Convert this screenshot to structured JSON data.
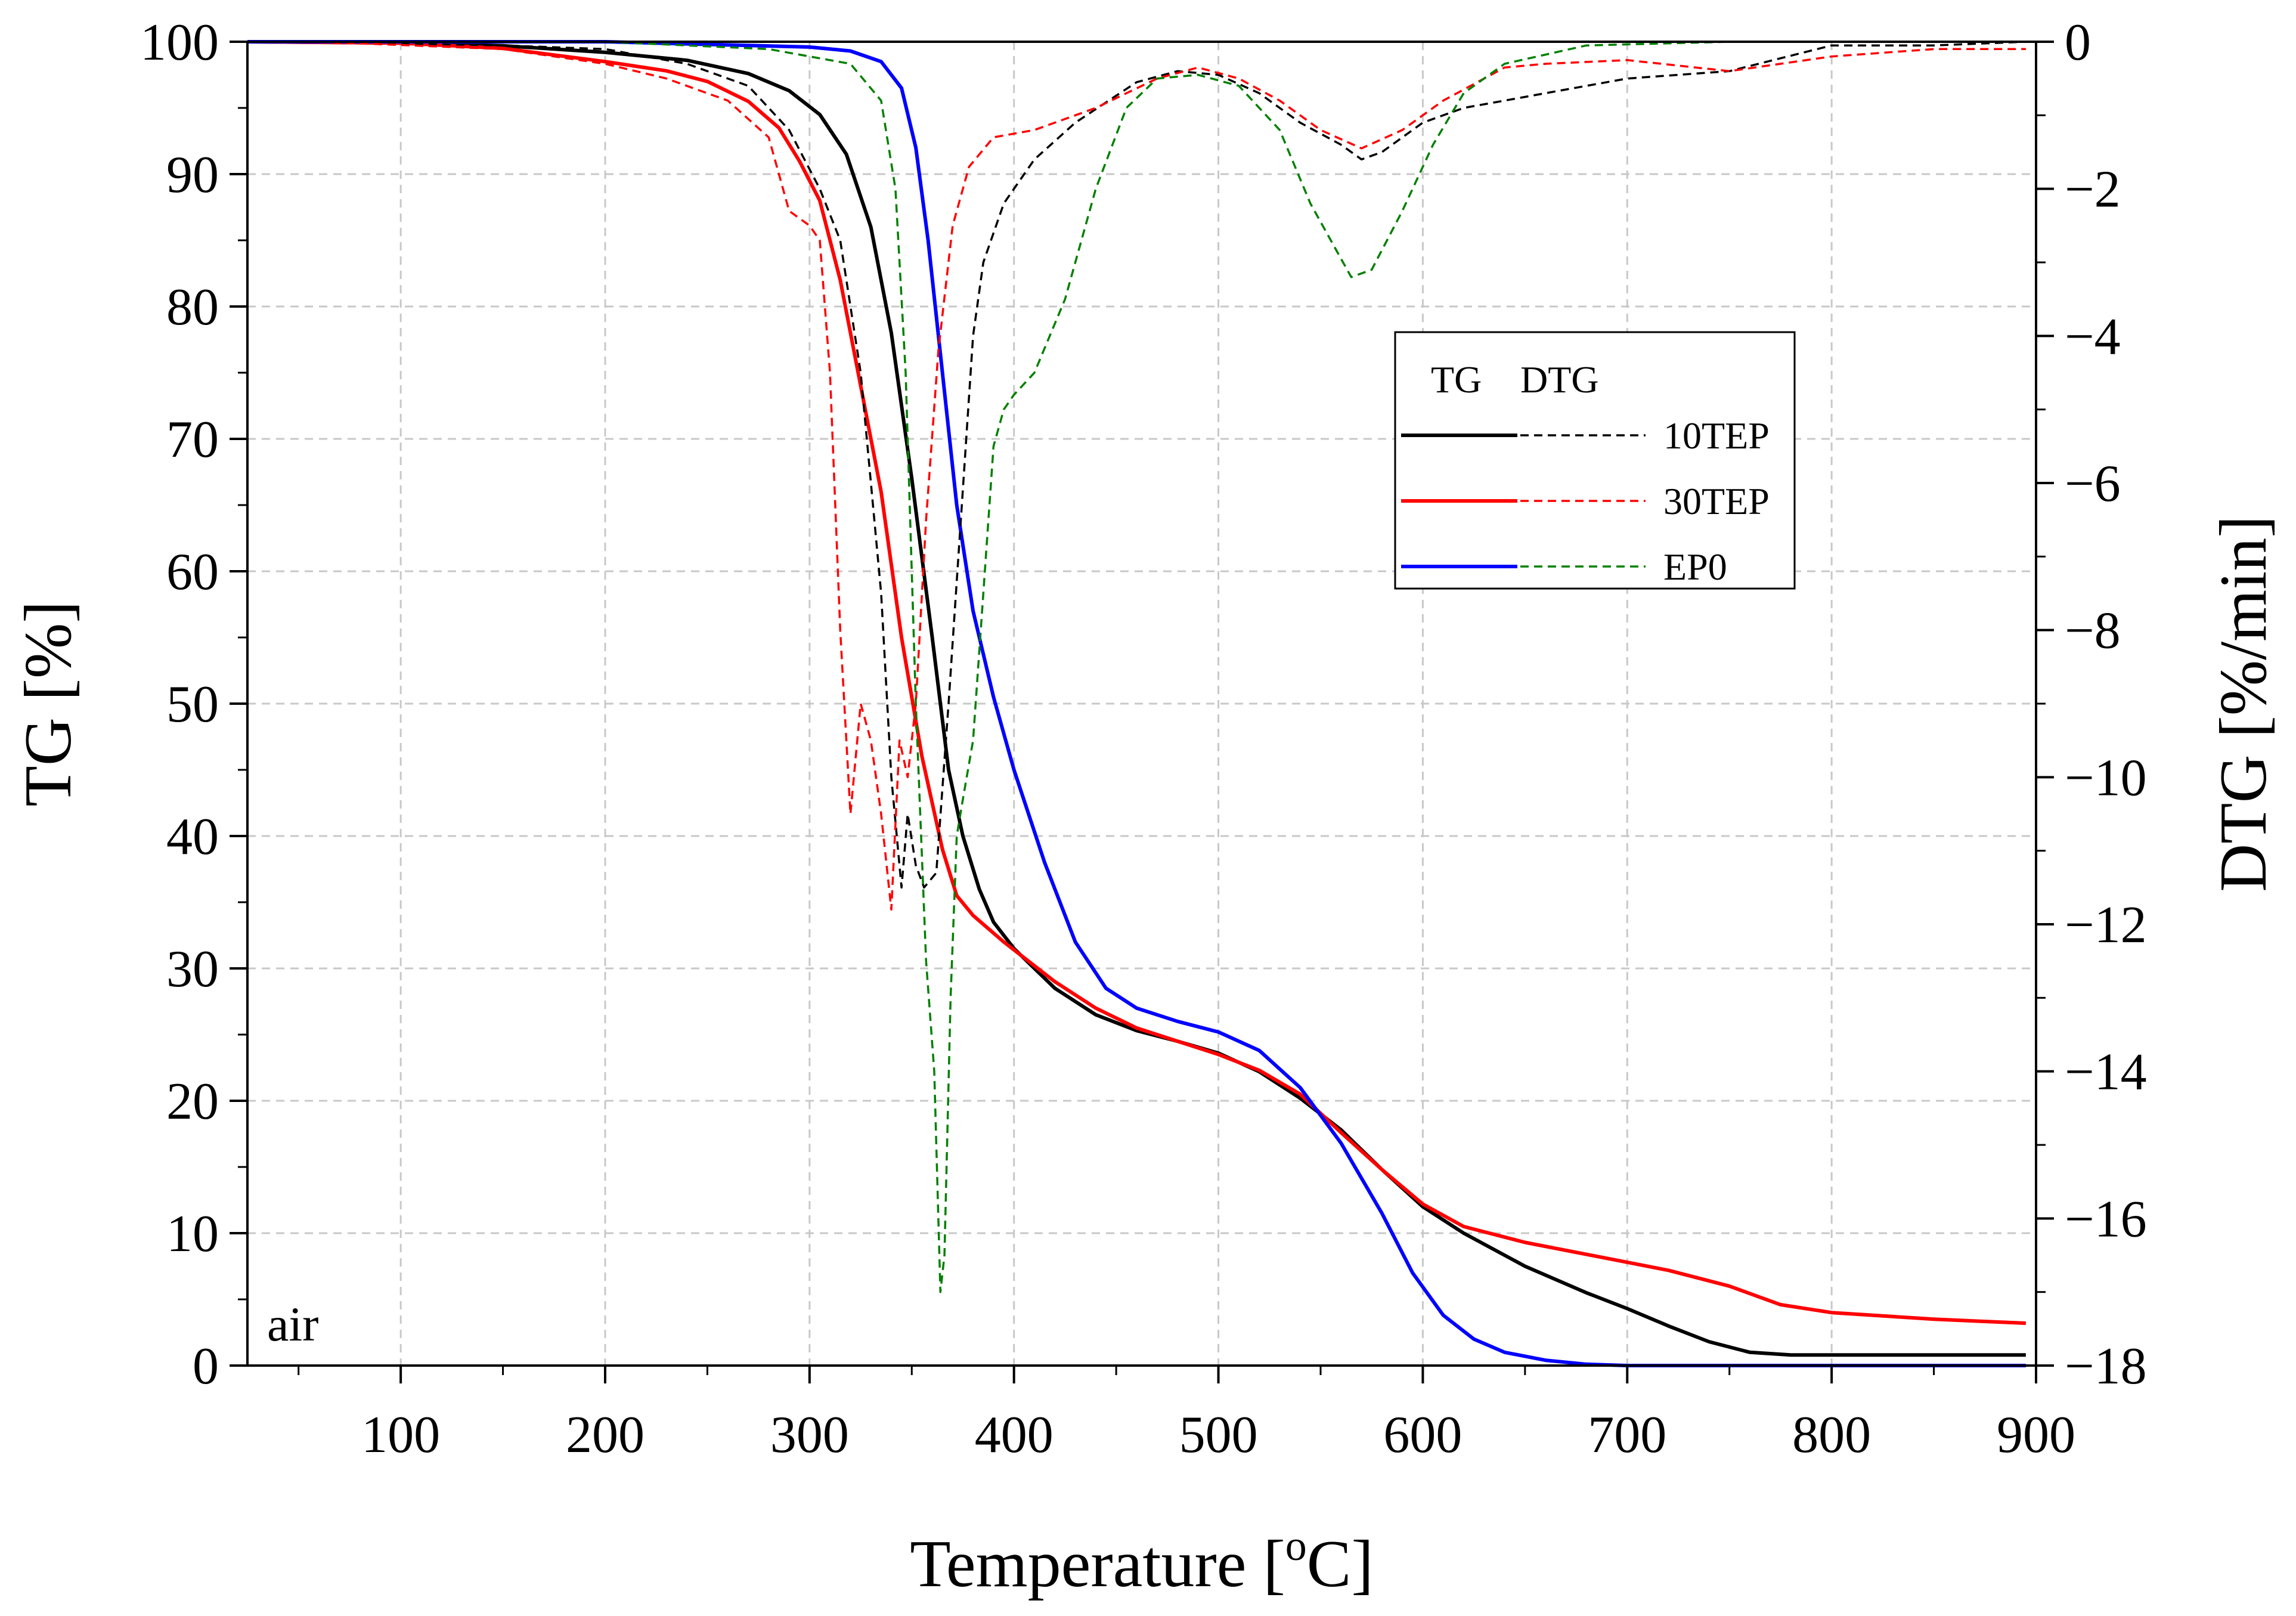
{
  "chart_data": {
    "type": "line",
    "title": "",
    "xlabel": "Temperature [",
    "xlabel_sup": "o",
    "xlabel_end": "C]",
    "ylabel": "TG [%]",
    "y2label": "DTG [%/min]",
    "xlim": [
      25,
      900
    ],
    "ylim": [
      0,
      100
    ],
    "y2lim": [
      -18,
      0
    ],
    "xticks": [
      100,
      200,
      300,
      400,
      500,
      600,
      700,
      800,
      900
    ],
    "xtick_labels": [
      "100",
      "200",
      "300",
      "400",
      "500",
      "600",
      "700",
      "800",
      "900"
    ],
    "yticks": [
      0,
      10,
      20,
      30,
      40,
      50,
      60,
      70,
      80,
      90,
      100
    ],
    "ytick_labels": [
      "0",
      "10",
      "20",
      "30",
      "40",
      "50",
      "60",
      "70",
      "80",
      "90",
      "100"
    ],
    "y2ticks": [
      0,
      -2,
      -4,
      -6,
      -8,
      -10,
      -12,
      -14,
      -16,
      -18
    ],
    "y2tick_labels": [
      "0",
      "−2",
      "−4",
      "−6",
      "−8",
      "−10",
      "−12",
      "−14",
      "−16",
      "−18"
    ],
    "grid": true,
    "legend": {
      "position": "upper-right",
      "header_tg": "TG",
      "header_dtg": "DTG",
      "entries": [
        "10TEP",
        "30TEP",
        "EP0"
      ]
    },
    "annotation": "air",
    "series": [
      {
        "name": "10TEP",
        "kind": "TG",
        "axis": "left",
        "color": "#000000",
        "style": "solid",
        "points": [
          [
            25,
            100
          ],
          [
            100,
            99.9
          ],
          [
            150,
            99.7
          ],
          [
            200,
            99.2
          ],
          [
            240,
            98.6
          ],
          [
            270,
            97.6
          ],
          [
            290,
            96.3
          ],
          [
            305,
            94.5
          ],
          [
            318,
            91.5
          ],
          [
            330,
            86
          ],
          [
            340,
            78
          ],
          [
            350,
            67
          ],
          [
            360,
            55
          ],
          [
            368,
            45
          ],
          [
            375,
            40
          ],
          [
            383,
            36
          ],
          [
            390,
            33.5
          ],
          [
            400,
            31.5
          ],
          [
            420,
            28.5
          ],
          [
            440,
            26.5
          ],
          [
            460,
            25.3
          ],
          [
            480,
            24.5
          ],
          [
            500,
            23.6
          ],
          [
            520,
            22.2
          ],
          [
            540,
            20.2
          ],
          [
            560,
            17.8
          ],
          [
            580,
            14.8
          ],
          [
            600,
            12
          ],
          [
            620,
            10
          ],
          [
            650,
            7.5
          ],
          [
            680,
            5.5
          ],
          [
            700,
            4.3
          ],
          [
            720,
            3
          ],
          [
            740,
            1.8
          ],
          [
            760,
            1
          ],
          [
            780,
            0.8
          ],
          [
            800,
            0.8
          ],
          [
            850,
            0.8
          ],
          [
            895,
            0.8
          ]
        ]
      },
      {
        "name": "30TEP",
        "kind": "TG",
        "axis": "left",
        "color": "#ff0000",
        "style": "solid",
        "points": [
          [
            25,
            100
          ],
          [
            100,
            99.9
          ],
          [
            150,
            99.5
          ],
          [
            200,
            98.5
          ],
          [
            230,
            97.8
          ],
          [
            250,
            97
          ],
          [
            270,
            95.5
          ],
          [
            285,
            93.5
          ],
          [
            295,
            91
          ],
          [
            305,
            88
          ],
          [
            315,
            82
          ],
          [
            325,
            74
          ],
          [
            335,
            66
          ],
          [
            345,
            55
          ],
          [
            355,
            46
          ],
          [
            365,
            39
          ],
          [
            372,
            35.5
          ],
          [
            380,
            34
          ],
          [
            395,
            32
          ],
          [
            420,
            29
          ],
          [
            440,
            27
          ],
          [
            460,
            25.5
          ],
          [
            480,
            24.5
          ],
          [
            500,
            23.5
          ],
          [
            520,
            22.3
          ],
          [
            540,
            20.5
          ],
          [
            560,
            17.6
          ],
          [
            580,
            14.8
          ],
          [
            600,
            12.2
          ],
          [
            620,
            10.5
          ],
          [
            650,
            9.3
          ],
          [
            700,
            7.8
          ],
          [
            720,
            7.2
          ],
          [
            750,
            6
          ],
          [
            775,
            4.6
          ],
          [
            800,
            4
          ],
          [
            850,
            3.5
          ],
          [
            895,
            3.2
          ]
        ]
      },
      {
        "name": "EP0",
        "kind": "TG",
        "axis": "left",
        "color": "#0000ff",
        "style": "solid",
        "points": [
          [
            25,
            100
          ],
          [
            200,
            100
          ],
          [
            300,
            99.6
          ],
          [
            320,
            99.3
          ],
          [
            335,
            98.5
          ],
          [
            345,
            96.5
          ],
          [
            352,
            92
          ],
          [
            358,
            85
          ],
          [
            365,
            75
          ],
          [
            372,
            65
          ],
          [
            380,
            57
          ],
          [
            390,
            50.5
          ],
          [
            400,
            45
          ],
          [
            415,
            38
          ],
          [
            430,
            32
          ],
          [
            445,
            28.5
          ],
          [
            460,
            27
          ],
          [
            480,
            26
          ],
          [
            500,
            25.2
          ],
          [
            520,
            23.8
          ],
          [
            540,
            21
          ],
          [
            560,
            16.8
          ],
          [
            580,
            11.5
          ],
          [
            595,
            7
          ],
          [
            610,
            3.8
          ],
          [
            625,
            2
          ],
          [
            640,
            1
          ],
          [
            660,
            0.4
          ],
          [
            680,
            0.1
          ],
          [
            700,
            0
          ],
          [
            800,
            0
          ],
          [
            895,
            0
          ]
        ]
      },
      {
        "name": "10TEP",
        "kind": "DTG",
        "axis": "right",
        "color": "#000000",
        "style": "dashed",
        "points": [
          [
            60,
            0
          ],
          [
            150,
            -0.05
          ],
          [
            200,
            -0.1
          ],
          [
            240,
            -0.3
          ],
          [
            270,
            -0.6
          ],
          [
            290,
            -1.2
          ],
          [
            305,
            -2
          ],
          [
            315,
            -2.7
          ],
          [
            325,
            -4.5
          ],
          [
            335,
            -7.5
          ],
          [
            340,
            -10
          ],
          [
            345,
            -11.5
          ],
          [
            348,
            -10.5
          ],
          [
            352,
            -11.2
          ],
          [
            356,
            -11.5
          ],
          [
            362,
            -11.3
          ],
          [
            368,
            -9
          ],
          [
            374,
            -6.5
          ],
          [
            380,
            -4
          ],
          [
            385,
            -3
          ],
          [
            395,
            -2.2
          ],
          [
            410,
            -1.6
          ],
          [
            430,
            -1.1
          ],
          [
            460,
            -0.55
          ],
          [
            480,
            -0.4
          ],
          [
            500,
            -0.45
          ],
          [
            520,
            -0.7
          ],
          [
            540,
            -1.1
          ],
          [
            560,
            -1.4
          ],
          [
            570,
            -1.6
          ],
          [
            580,
            -1.5
          ],
          [
            600,
            -1.1
          ],
          [
            620,
            -0.9
          ],
          [
            640,
            -0.8
          ],
          [
            660,
            -0.7
          ],
          [
            700,
            -0.5
          ],
          [
            750,
            -0.4
          ],
          [
            800,
            -0.05
          ],
          [
            850,
            -0.05
          ],
          [
            895,
            0
          ]
        ]
      },
      {
        "name": "30TEP",
        "kind": "DTG",
        "axis": "right",
        "color": "#ff0000",
        "style": "dashed",
        "points": [
          [
            60,
            0
          ],
          [
            150,
            -0.1
          ],
          [
            200,
            -0.3
          ],
          [
            230,
            -0.5
          ],
          [
            260,
            -0.8
          ],
          [
            280,
            -1.3
          ],
          [
            290,
            -2.3
          ],
          [
            300,
            -2.5
          ],
          [
            305,
            -2.7
          ],
          [
            310,
            -4.5
          ],
          [
            315,
            -8
          ],
          [
            320,
            -10.5
          ],
          [
            325,
            -9
          ],
          [
            330,
            -9.5
          ],
          [
            335,
            -10.5
          ],
          [
            340,
            -11.8
          ],
          [
            344,
            -9.5
          ],
          [
            348,
            -10
          ],
          [
            352,
            -9
          ],
          [
            357,
            -6.5
          ],
          [
            363,
            -4.2
          ],
          [
            370,
            -2.5
          ],
          [
            378,
            -1.7
          ],
          [
            390,
            -1.3
          ],
          [
            410,
            -1.2
          ],
          [
            440,
            -0.9
          ],
          [
            470,
            -0.5
          ],
          [
            490,
            -0.35
          ],
          [
            510,
            -0.5
          ],
          [
            530,
            -0.8
          ],
          [
            550,
            -1.2
          ],
          [
            570,
            -1.45
          ],
          [
            590,
            -1.2
          ],
          [
            610,
            -0.8
          ],
          [
            640,
            -0.35
          ],
          [
            660,
            -0.3
          ],
          [
            700,
            -0.25
          ],
          [
            750,
            -0.4
          ],
          [
            800,
            -0.2
          ],
          [
            850,
            -0.1
          ],
          [
            895,
            -0.1
          ]
        ]
      },
      {
        "name": "EP0",
        "kind": "DTG",
        "axis": "right",
        "color": "#008000",
        "style": "dashed",
        "points": [
          [
            60,
            0
          ],
          [
            200,
            0
          ],
          [
            280,
            -0.1
          ],
          [
            300,
            -0.2
          ],
          [
            320,
            -0.3
          ],
          [
            335,
            -0.8
          ],
          [
            342,
            -2
          ],
          [
            347,
            -4.5
          ],
          [
            352,
            -9
          ],
          [
            357,
            -12.5
          ],
          [
            361,
            -14
          ],
          [
            364,
            -17
          ],
          [
            366,
            -16.5
          ],
          [
            369,
            -13
          ],
          [
            372,
            -10.8
          ],
          [
            375,
            -10.3
          ],
          [
            380,
            -9.5
          ],
          [
            385,
            -7.5
          ],
          [
            390,
            -5.5
          ],
          [
            395,
            -5
          ],
          [
            400,
            -4.8
          ],
          [
            410,
            -4.5
          ],
          [
            425,
            -3.5
          ],
          [
            440,
            -2
          ],
          [
            455,
            -0.9
          ],
          [
            470,
            -0.5
          ],
          [
            490,
            -0.45
          ],
          [
            510,
            -0.6
          ],
          [
            530,
            -1.2
          ],
          [
            545,
            -2.2
          ],
          [
            555,
            -2.7
          ],
          [
            565,
            -3.2
          ],
          [
            575,
            -3.1
          ],
          [
            590,
            -2.3
          ],
          [
            605,
            -1.4
          ],
          [
            620,
            -0.7
          ],
          [
            640,
            -0.3
          ],
          [
            680,
            -0.05
          ],
          [
            750,
            0
          ],
          [
            895,
            0
          ]
        ]
      }
    ]
  }
}
